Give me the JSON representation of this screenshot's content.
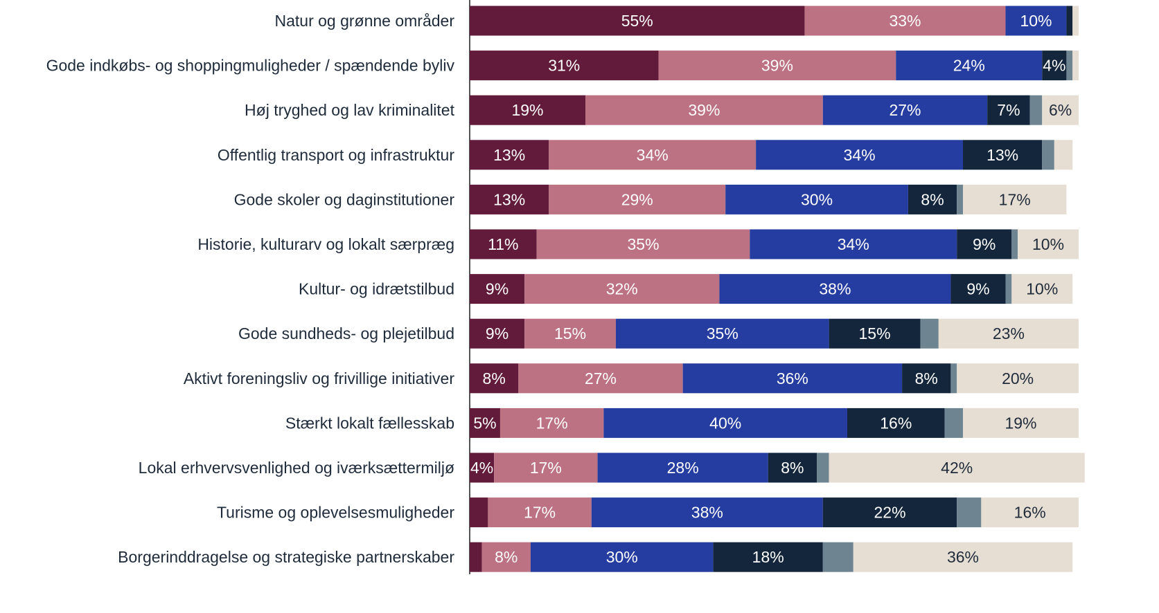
{
  "chart_data": {
    "type": "stacked_barh",
    "categories": [
      "Natur og grønne områder",
      "Gode indkøbs- og shoppingmuligheder / spændende byliv",
      "Høj tryghed og lav kriminalitet",
      "Offentlig transport og infrastruktur",
      "Gode skoler og daginstitutioner",
      "Historie, kulturarv og lokalt særpræg",
      "Kultur- og idrætstilbud",
      "Gode sundheds- og plejetilbud",
      "Aktivt foreningsliv og frivillige initiativer",
      "Stærkt lokalt fællesskab",
      "Lokal erhvervsvenlighed og iværksættermiljø",
      "Turisme og oplevelsesmuligheder",
      "Borgerinddragelse og strategiske partnerskaber"
    ],
    "xlim": [
      0,
      100
    ],
    "series": [
      {
        "color": "#621b3b",
        "values": [
          55,
          31,
          19,
          13,
          13,
          11,
          9,
          9,
          8,
          5,
          4,
          3,
          2
        ],
        "value_labels": [
          "55%",
          "31%",
          "19%",
          "13%",
          "13%",
          "11%",
          "9%",
          "9%",
          "8%",
          "5%",
          "4%",
          null,
          null
        ]
      },
      {
        "color": "#bc7282",
        "values": [
          33,
          39,
          39,
          34,
          29,
          35,
          32,
          15,
          27,
          17,
          17,
          17,
          8
        ],
        "value_labels": [
          "33%",
          "39%",
          "39%",
          "34%",
          "29%",
          "35%",
          "32%",
          "15%",
          "27%",
          "17%",
          "17%",
          "17%",
          "8%"
        ]
      },
      {
        "color": "#253da0",
        "values": [
          10,
          24,
          27,
          34,
          30,
          34,
          38,
          35,
          36,
          40,
          28,
          38,
          30
        ],
        "value_labels": [
          "10%",
          "24%",
          "27%",
          "34%",
          "30%",
          "34%",
          "38%",
          "35%",
          "36%",
          "40%",
          "28%",
          "38%",
          "30%"
        ]
      },
      {
        "color": "#13263c",
        "values": [
          1,
          4,
          7,
          13,
          8,
          9,
          9,
          15,
          8,
          16,
          8,
          22,
          18
        ],
        "value_labels": [
          null,
          "4%",
          "7%",
          "13%",
          "8%",
          "9%",
          "9%",
          "15%",
          "8%",
          "16%",
          "8%",
          "22%",
          "18%"
        ]
      },
      {
        "color": "#6e8591",
        "values": [
          0,
          1,
          2,
          2,
          1,
          1,
          1,
          3,
          1,
          3,
          2,
          4,
          5
        ],
        "value_labels": [
          null,
          null,
          null,
          null,
          null,
          null,
          null,
          null,
          null,
          null,
          null,
          null,
          null
        ]
      },
      {
        "color": "#e6ded3",
        "values": [
          1,
          1,
          6,
          3,
          17,
          10,
          10,
          23,
          20,
          19,
          42,
          16,
          36
        ],
        "value_labels": [
          null,
          null,
          "6%",
          null,
          "17%",
          "10%",
          "10%",
          "23%",
          "20%",
          "19%",
          "42%",
          "16%",
          "36%"
        ]
      }
    ]
  }
}
